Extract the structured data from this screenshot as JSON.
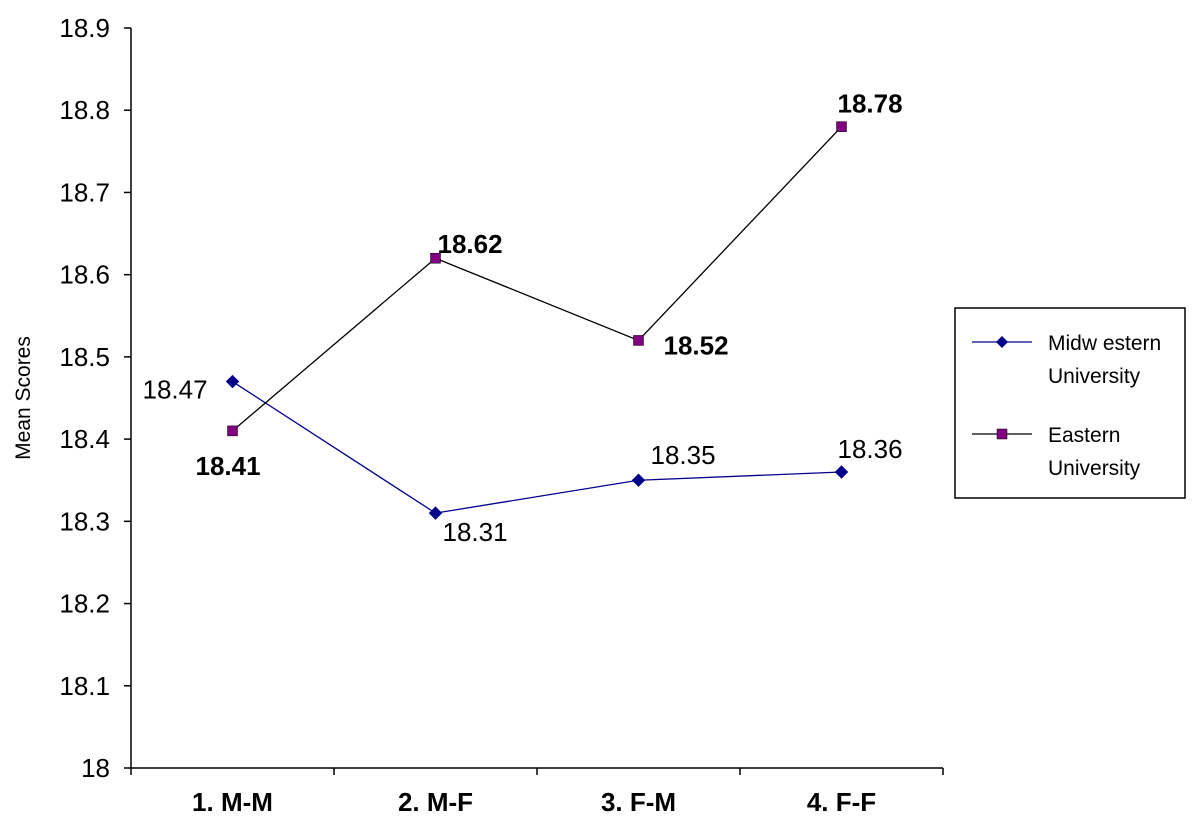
{
  "chart_data": {
    "type": "line",
    "title": "",
    "xlabel": "",
    "ylabel": "Mean Scores",
    "categories": [
      "1. M-M",
      "2. M-F",
      "3. F-M",
      "4. F-F"
    ],
    "ylim": [
      18,
      18.9
    ],
    "yticks": [
      "18",
      "18.1",
      "18.2",
      "18.3",
      "18.4",
      "18.5",
      "18.6",
      "18.7",
      "18.8",
      "18.9"
    ],
    "grid": false,
    "legend_position": "right",
    "series": [
      {
        "name": "Midwestern University",
        "legend_lines": [
          "Midw estern",
          "University"
        ],
        "values": [
          18.47,
          18.31,
          18.35,
          18.36
        ],
        "labels": [
          "18.47",
          "18.31",
          "18.35",
          "18.36"
        ],
        "label_style": "normal",
        "line_color": "#00008b",
        "marker": "diamond",
        "marker_color": "#00008b"
      },
      {
        "name": "Eastern University",
        "legend_lines": [
          "Eastern",
          "University"
        ],
        "values": [
          18.41,
          18.62,
          18.52,
          18.78
        ],
        "labels": [
          "18.41",
          "18.62",
          "18.52",
          "18.78"
        ],
        "label_style": "bold",
        "line_color": "#000000",
        "marker": "square",
        "marker_color": "#800080"
      }
    ]
  }
}
